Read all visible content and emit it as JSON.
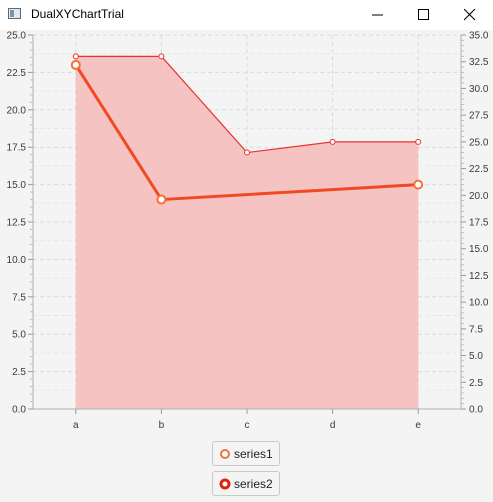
{
  "window": {
    "title": "DualXYChartTrial",
    "controls": {
      "minimize": "minimize-icon",
      "maximize": "maximize-icon",
      "close": "close-icon"
    }
  },
  "colors": {
    "series1_line": "#e8322b",
    "series1_fill": "#f4bebc",
    "series2_line": "#f04a24",
    "marker_stroke": "#f4713a",
    "plot_bg": "#f4f4f4",
    "grid": "#dadada",
    "axis_text": "#3a3a3a"
  },
  "legend": [
    {
      "label": "series1",
      "symbol": "hollow-circle-orange"
    },
    {
      "label": "series2",
      "symbol": "thick-circle-red"
    }
  ],
  "chart_data": {
    "type": "area",
    "title": "",
    "xlabel": "",
    "ylabel": "",
    "categories": [
      "a",
      "b",
      "c",
      "d",
      "e"
    ],
    "y_left": {
      "range": [
        0,
        25
      ],
      "ticks": [
        "0.0",
        "2.5",
        "5.0",
        "7.5",
        "10.0",
        "12.5",
        "15.0",
        "17.5",
        "20.0",
        "22.5",
        "25.0"
      ]
    },
    "y_right": {
      "range": [
        0,
        35
      ],
      "ticks": [
        "0.0",
        "2.5",
        "5.0",
        "7.5",
        "10.0",
        "12.5",
        "15.0",
        "17.5",
        "20.0",
        "22.5",
        "25.0",
        "27.5",
        "30.0",
        "32.5",
        "35.0"
      ]
    },
    "grid": true,
    "legend_position": "bottom",
    "series": [
      {
        "name": "series1",
        "type": "area",
        "axis": "right",
        "values": [
          33.0,
          33.0,
          24.0,
          25.0,
          25.0
        ]
      },
      {
        "name": "series2",
        "type": "line",
        "axis": "left",
        "values": [
          23.0,
          14.0,
          null,
          null,
          15.0
        ]
      }
    ]
  }
}
